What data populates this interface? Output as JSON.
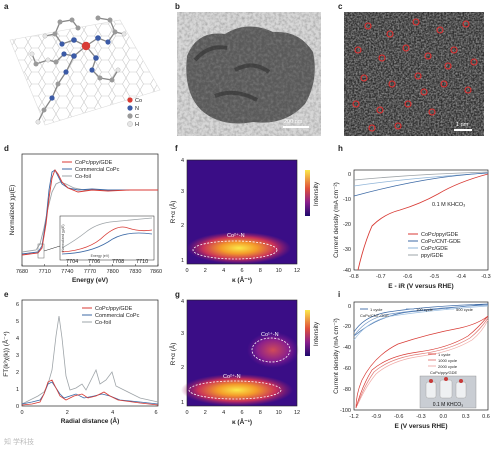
{
  "panels": {
    "a": {
      "label": "a",
      "legend": [
        {
          "sym": "Co",
          "color": "#d83a34"
        },
        {
          "sym": "N",
          "color": "#3b5aa6"
        },
        {
          "sym": "C",
          "color": "#9a9a9a"
        },
        {
          "sym": "H",
          "color": "#e6e6e6"
        }
      ]
    },
    "b": {
      "label": "b",
      "scale": "200 nm"
    },
    "c": {
      "label": "c",
      "scale": "1 nm"
    },
    "d": {
      "label": "d",
      "xlabel": "Energy (eV)",
      "ylabel": "Normalized χμ(E)",
      "xticks": [
        "7680",
        "7710",
        "7740",
        "7770",
        "7800",
        "7830",
        "7860"
      ],
      "legend": [
        "CoPc/ppy/GDE",
        "Commercial CoPc",
        "Co-foil"
      ],
      "inset_ylabel": "Normalized χμ(E)",
      "inset_xlabel": "Energy (eV)",
      "inset_xticks": [
        "7704",
        "7706",
        "7708",
        "7710"
      ]
    },
    "e": {
      "label": "e",
      "xlabel": "Radial distance (Å)",
      "ylabel": "FT(k³χ(k)) (Å⁻⁴)",
      "xticks": [
        "0",
        "2",
        "4",
        "6"
      ],
      "yticks": [
        "0",
        "1",
        "2",
        "3",
        "4",
        "5",
        "6"
      ],
      "legend": [
        "CoPc/ppy/GDE",
        "Commercial CoPc",
        "Co-foil"
      ]
    },
    "f": {
      "label": "f",
      "xlabel": "κ (Å⁻¹)",
      "ylabel": "R+α (Å)",
      "cbar": "Intensity",
      "xticks": [
        "0",
        "2",
        "4",
        "6",
        "8",
        "10",
        "12"
      ],
      "yticks": [
        "1",
        "2",
        "3",
        "4"
      ],
      "ann": "Co²⁺-N"
    },
    "g": {
      "label": "g",
      "xlabel": "κ (Å⁻¹)",
      "ylabel": "R+α (Å)",
      "cbar": "Intensity",
      "xticks": [
        "0",
        "2",
        "4",
        "6",
        "8",
        "10",
        "12"
      ],
      "yticks": [
        "1",
        "2",
        "3",
        "4"
      ],
      "ann1": "Co¹⁺-N",
      "ann2": "Co²⁺-N"
    },
    "h": {
      "label": "h",
      "xlabel": "E - iR (V versus RHE)",
      "ylabel": "Current density (mA cm⁻²)",
      "xticks": [
        "-0.8",
        "-0.7",
        "-0.6",
        "-0.5",
        "-0.4",
        "-0.3"
      ],
      "yticks": [
        "0",
        "-10",
        "-20",
        "-30",
        "-40"
      ],
      "note": "0.1 M KHCO₃",
      "legend": [
        "CoPc/ppy/GDE",
        "CoPc/CNT-GDE",
        "CoPc/GDE",
        "ppy/GDE"
      ]
    },
    "i": {
      "label": "i",
      "xlabel": "E (V versus RHE)",
      "ylabel": "Current density (mA cm⁻²)",
      "xticks": [
        "-1.2",
        "-0.9",
        "-0.6",
        "-0.3",
        "0.0",
        "0.3",
        "0.6"
      ],
      "yticks": [
        "0",
        "-20",
        "-40",
        "-60",
        "-80",
        "-100"
      ],
      "legend_top": [
        "1 cycle",
        "100 cycle",
        "500 cycle",
        "CoPc/CNT-GDE"
      ],
      "legend_mid": [
        "1 cycle",
        "1000 cycle",
        "2000 cycle",
        "CoPc/ppy/GDE"
      ],
      "note": "0.1 M KHCO₃"
    }
  },
  "watermark": "知 学科技"
}
